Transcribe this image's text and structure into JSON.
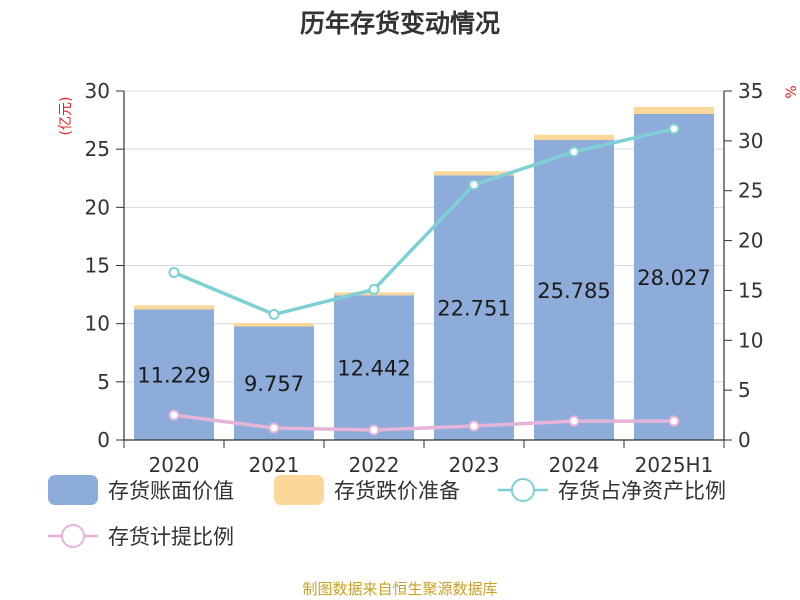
{
  "chart_data": {
    "type": "bar",
    "title": "历年存货变动情况",
    "categories": [
      "2020",
      "2021",
      "2022",
      "2023",
      "2024",
      "2025H1"
    ],
    "left_axis": {
      "unit_label": "(亿元)",
      "range": [
        0,
        30
      ],
      "ticks": [
        "0",
        "5",
        "10",
        "15",
        "20",
        "25",
        "30"
      ]
    },
    "right_axis": {
      "unit_label": "%",
      "range": [
        0,
        35
      ],
      "ticks": [
        "0",
        "5",
        "10",
        "15",
        "20",
        "25",
        "30",
        "35"
      ]
    },
    "bar_series": [
      {
        "name": "存货账面价值",
        "color": "#8eacd9",
        "values": [
          11.229,
          9.757,
          12.442,
          22.751,
          25.785,
          28.027
        ],
        "labels": [
          "11.229",
          "9.757",
          "12.442",
          "22.751",
          "25.785",
          "28.027"
        ]
      },
      {
        "name": "存货跌价准备",
        "color": "#fcd79a",
        "values": [
          0.35,
          0.3,
          0.25,
          0.35,
          0.45,
          0.6
        ]
      }
    ],
    "line_series": [
      {
        "name": "存货占净资产比例",
        "color": "#7fd0d4",
        "axis": "right",
        "values": [
          16.8,
          12.6,
          15.1,
          25.6,
          28.9,
          31.2
        ]
      },
      {
        "name": "存货计提比例",
        "color": "#e5b4d8",
        "axis": "right",
        "values": [
          2.5,
          1.2,
          1.0,
          1.4,
          1.9,
          1.9
        ]
      }
    ],
    "grid": true,
    "legend_position": "bottom"
  },
  "source": "制图数据来自恒生聚源数据库"
}
